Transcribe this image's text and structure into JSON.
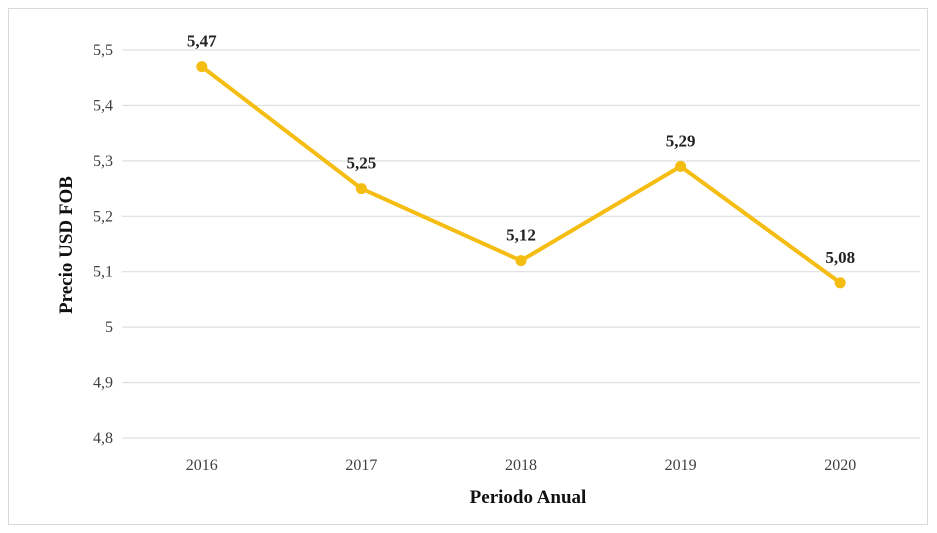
{
  "chart_data": {
    "type": "line",
    "categories": [
      "2016",
      "2017",
      "2018",
      "2019",
      "2020"
    ],
    "series": [
      {
        "values": [
          5.47,
          5.25,
          5.12,
          5.29,
          5.08
        ],
        "data_labels": [
          "5,47",
          "5,25",
          "5,12",
          "5,29",
          "5,08"
        ],
        "color": "#f5bd12"
      }
    ],
    "xlabel": "Periodo Anual",
    "ylabel": "Precio USD FOB",
    "ylim": [
      4.8,
      5.5
    ],
    "yticks": [
      4.8,
      4.9,
      5.0,
      5.1,
      5.2,
      5.3,
      5.4,
      5.5
    ],
    "ytick_labels": [
      "4,8",
      "4,9",
      "5",
      "5,1",
      "5,2",
      "5,3",
      "5,4",
      "5,5"
    ],
    "grid": true,
    "legend": "none",
    "gridline_color": "#d9d9d9"
  }
}
